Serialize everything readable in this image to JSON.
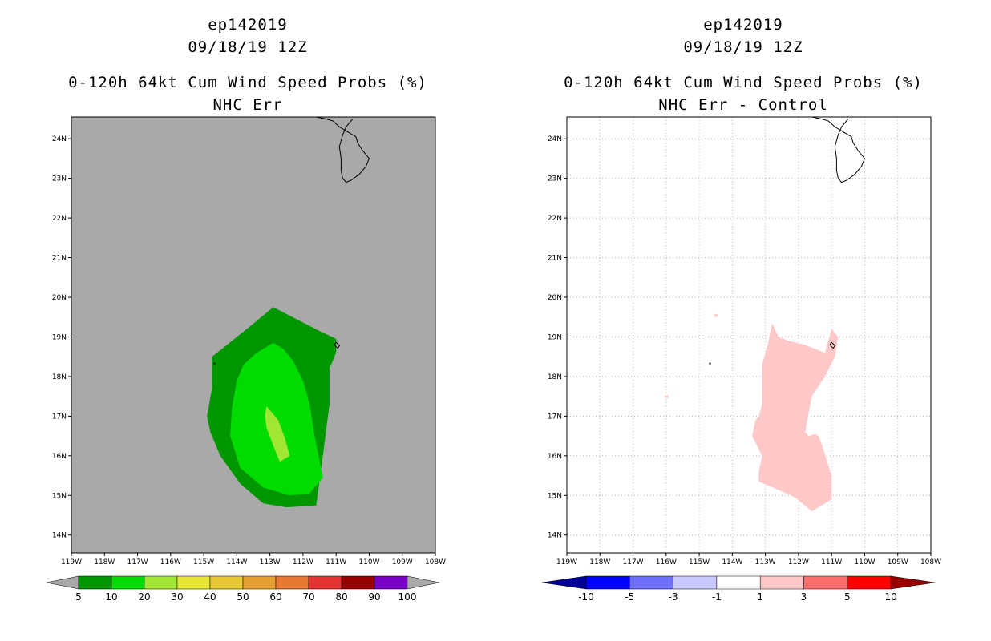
{
  "panels": [
    {
      "storm_id": "ep142019",
      "datetime": "09/18/19 12Z",
      "title": "0-120h 64kt Cum Wind Speed Probs (%)",
      "subtitle": "NHC Err",
      "background_color": "#a9a9a9",
      "colorbar": {
        "labels": [
          "5",
          "10",
          "20",
          "30",
          "40",
          "50",
          "60",
          "70",
          "80",
          "90",
          "100"
        ],
        "colors": [
          "#009600",
          "#00dc00",
          "#a0e632",
          "#e6e632",
          "#e6c832",
          "#e6a032",
          "#e67832",
          "#e63232",
          "#960000",
          "#7800c8"
        ],
        "end_color": "#a9a9a9"
      }
    },
    {
      "storm_id": "ep142019",
      "datetime": "09/18/19 12Z",
      "title": "0-120h 64kt Cum Wind Speed Probs (%)",
      "subtitle": "NHC Err - Control",
      "background_color": "#ffffff",
      "colorbar": {
        "labels": [
          "-10",
          "-5",
          "-3",
          "-1",
          "1",
          "3",
          "5",
          "10"
        ],
        "colors": [
          "#0000ff",
          "#6e6eff",
          "#c8c8ff",
          "#ffffff",
          "#ffc8c8",
          "#ff6e6e",
          "#ff0000"
        ],
        "low_end_color": "#000096",
        "high_end_color": "#960000"
      }
    }
  ],
  "chart_data": [
    {
      "type": "heatmap",
      "title": "0-120h 64kt Cum Wind Speed Probs (%) - NHC Err",
      "x_ticks": [
        "119W",
        "118W",
        "117W",
        "116W",
        "115W",
        "114W",
        "113W",
        "112W",
        "111W",
        "110W",
        "109W",
        "108W"
      ],
      "y_ticks": [
        "14N",
        "15N",
        "16N",
        "17N",
        "18N",
        "19N",
        "20N",
        "21N",
        "22N",
        "23N",
        "24N"
      ],
      "xlim": [
        -119,
        -108
      ],
      "ylim": [
        13.55,
        24.55
      ],
      "grid": false,
      "contours": [
        {
          "level": "5-10",
          "color": "#009600",
          "lon": [
            -112.9,
            -112.2,
            -111.5,
            -111.0,
            -111.0,
            -111.2,
            -111.2,
            -111.4,
            -111.6,
            -112.5,
            -113.2,
            -113.9,
            -114.5,
            -114.8,
            -114.9,
            -114.75,
            -114.75,
            -114.3,
            -113.7
          ],
          "lat": [
            19.75,
            19.45,
            19.15,
            18.95,
            18.6,
            18.2,
            17.3,
            16.0,
            14.75,
            14.7,
            14.8,
            15.3,
            16.0,
            16.6,
            17.0,
            17.7,
            18.5,
            18.8,
            19.2
          ]
        },
        {
          "level": "10-20",
          "color": "#00dc00",
          "lon": [
            -112.9,
            -112.6,
            -112.3,
            -112.0,
            -111.8,
            -111.65,
            -111.4,
            -111.8,
            -112.4,
            -113.2,
            -113.9,
            -114.2,
            -114.15,
            -114.0,
            -113.8,
            -113.4
          ],
          "lat": [
            18.85,
            18.7,
            18.4,
            17.9,
            17.3,
            16.5,
            15.45,
            15.05,
            15.0,
            15.2,
            15.7,
            16.5,
            17.2,
            17.9,
            18.3,
            18.6
          ]
        },
        {
          "level": "20-30",
          "color": "#a0e632",
          "lon": [
            -113.1,
            -112.75,
            -112.55,
            -112.4,
            -112.7,
            -112.85,
            -113.1,
            -113.15
          ],
          "lat": [
            17.25,
            16.9,
            16.45,
            16.0,
            15.85,
            16.15,
            16.7,
            17.0
          ]
        }
      ],
      "islands": [
        {
          "name": "Isla Socorro",
          "lon": -110.97,
          "lat": 18.78
        }
      ]
    },
    {
      "type": "heatmap",
      "title": "0-120h 64kt Cum Wind Speed Probs (%) - NHC Err - Control",
      "x_ticks": [
        "119W",
        "118W",
        "117W",
        "116W",
        "115W",
        "114W",
        "113W",
        "112W",
        "111W",
        "110W",
        "109W",
        "108W"
      ],
      "y_ticks": [
        "14N",
        "15N",
        "16N",
        "17N",
        "18N",
        "19N",
        "20N",
        "21N",
        "22N",
        "23N",
        "24N"
      ],
      "xlim": [
        -119,
        -108
      ],
      "ylim": [
        13.55,
        24.55
      ],
      "grid": true,
      "contours": [
        {
          "level": "1-3",
          "color": "#ffc8c8",
          "lon": [
            -112.8,
            -112.6,
            -112.3,
            -111.8,
            -111.2,
            -111.0,
            -110.8,
            -110.9,
            -111.2,
            -111.6,
            -111.8,
            -111.7,
            -111.5,
            -111.4,
            -111.3,
            -111.0,
            -111.0,
            -111.6,
            -112.1,
            -112.5,
            -113.2,
            -113.2,
            -113.1,
            -113.4,
            -113.3,
            -113.2,
            -113.1,
            -113.1,
            -112.9
          ],
          "lat": [
            19.35,
            19.0,
            18.9,
            18.8,
            18.6,
            19.2,
            19.0,
            18.5,
            18.0,
            17.5,
            16.6,
            16.5,
            16.55,
            16.5,
            16.3,
            15.5,
            14.9,
            14.6,
            14.95,
            15.1,
            15.35,
            15.6,
            16.0,
            16.5,
            16.9,
            17.0,
            17.3,
            18.3,
            18.9
          ]
        }
      ],
      "specks": [
        {
          "lon": -116.0,
          "lat": 17.5
        },
        {
          "lon": -114.5,
          "lat": 19.55
        }
      ],
      "islands": [
        {
          "name": "Isla Socorro",
          "lon": -110.97,
          "lat": 18.78
        }
      ]
    }
  ]
}
